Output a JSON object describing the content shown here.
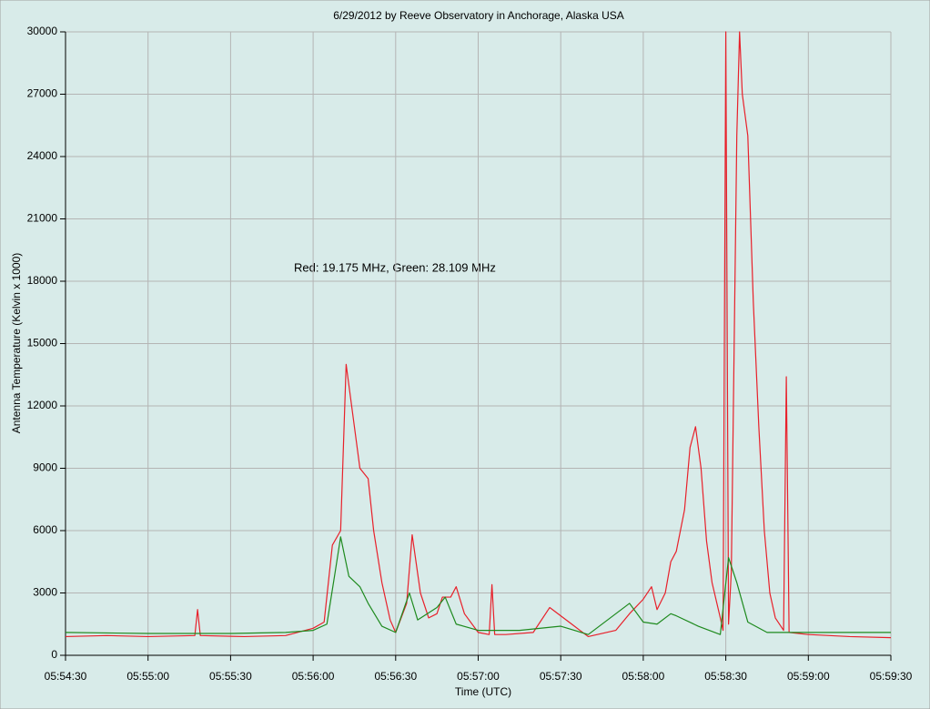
{
  "chart_data": {
    "type": "line",
    "title": "6/29/2012  by  Reeve Observatory  in  Anchorage, Alaska  USA",
    "xlabel": "Time (UTC)",
    "ylabel": "Antenna Temperature (Kelvin x 1000)",
    "annotation": "Red: 19.175 MHz, Green: 28.109 MHz",
    "xlim": [
      "05:54:30",
      "05:59:30"
    ],
    "xticks": [
      "05:54:30",
      "05:55:00",
      "05:55:30",
      "05:56:00",
      "05:56:30",
      "05:57:00",
      "05:57:30",
      "05:58:00",
      "05:58:30",
      "05:59:00",
      "05:59:30"
    ],
    "ylim": [
      0,
      30000
    ],
    "yticks": [
      0,
      3000,
      6000,
      9000,
      12000,
      15000,
      18000,
      21000,
      24000,
      27000,
      30000
    ],
    "grid": true,
    "series": [
      {
        "name": "Red",
        "color": "#e8202a",
        "x": [
          "05:54:30",
          "05:54:45",
          "05:55:00",
          "05:55:17",
          "05:55:18",
          "05:55:19",
          "05:55:35",
          "05:55:50",
          "05:56:00",
          "05:56:04",
          "05:56:07",
          "05:56:10",
          "05:56:12",
          "05:56:15",
          "05:56:17",
          "05:56:20",
          "05:56:22",
          "05:56:25",
          "05:56:28",
          "05:56:30",
          "05:56:34",
          "05:56:36",
          "05:56:39",
          "05:56:42",
          "05:56:45",
          "05:56:47",
          "05:56:50",
          "05:56:52",
          "05:56:55",
          "05:57:00",
          "05:57:04",
          "05:57:05",
          "05:57:06",
          "05:57:10",
          "05:57:20",
          "05:57:26",
          "05:57:30",
          "05:57:34",
          "05:57:40",
          "05:57:50",
          "05:57:55",
          "05:58:00",
          "05:58:03",
          "05:58:05",
          "05:58:08",
          "05:58:10",
          "05:58:12",
          "05:58:15",
          "05:58:17",
          "05:58:19",
          "05:58:21",
          "05:58:23",
          "05:58:25",
          "05:58:28",
          "05:58:29",
          "05:58:30",
          "05:58:31",
          "05:58:32",
          "05:58:34",
          "05:58:35",
          "05:58:36",
          "05:58:38",
          "05:58:40",
          "05:58:42",
          "05:58:44",
          "05:58:46",
          "05:58:48",
          "05:58:51",
          "05:58:52",
          "05:58:53",
          "05:59:00",
          "05:59:15",
          "05:59:30"
        ],
        "values": [
          900,
          950,
          900,
          950,
          2200,
          950,
          900,
          950,
          1300,
          1600,
          5300,
          6000,
          14000,
          11000,
          9000,
          8500,
          6000,
          3500,
          1700,
          1100,
          2500,
          5800,
          3000,
          1800,
          2000,
          2800,
          2800,
          3300,
          2000,
          1100,
          1000,
          3400,
          1000,
          1000,
          1100,
          2300,
          1900,
          1500,
          900,
          1200,
          2000,
          2700,
          3300,
          2200,
          3000,
          4500,
          5000,
          7000,
          10000,
          11000,
          9000,
          5500,
          3500,
          1800,
          1200,
          30000,
          1500,
          4000,
          25000,
          30000,
          27000,
          25000,
          17000,
          11000,
          6000,
          3000,
          1800,
          1200,
          13400,
          1100,
          1000,
          900,
          850
        ]
      },
      {
        "name": "Green",
        "color": "#1e8a1e",
        "x": [
          "05:54:30",
          "05:55:00",
          "05:55:30",
          "05:55:50",
          "05:56:00",
          "05:56:05",
          "05:56:08",
          "05:56:10",
          "05:56:13",
          "05:56:17",
          "05:56:20",
          "05:56:25",
          "05:56:30",
          "05:56:35",
          "05:56:38",
          "05:56:45",
          "05:56:48",
          "05:56:52",
          "05:57:00",
          "05:57:15",
          "05:57:30",
          "05:57:40",
          "05:57:55",
          "05:58:00",
          "05:58:05",
          "05:58:10",
          "05:58:12",
          "05:58:20",
          "05:58:28",
          "05:58:31",
          "05:58:34",
          "05:58:38",
          "05:58:45",
          "05:59:00",
          "05:59:30"
        ],
        "values": [
          1100,
          1050,
          1050,
          1100,
          1200,
          1500,
          4000,
          5700,
          3800,
          3300,
          2500,
          1400,
          1100,
          3000,
          1700,
          2300,
          2800,
          1500,
          1200,
          1200,
          1400,
          1000,
          2500,
          1600,
          1500,
          2000,
          1900,
          1400,
          1000,
          4700,
          3500,
          1600,
          1100,
          1100,
          1100
        ]
      }
    ]
  }
}
